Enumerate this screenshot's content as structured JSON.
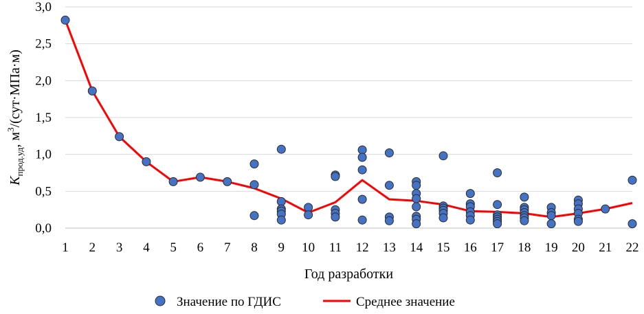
{
  "chart_data": {
    "type": "scatter",
    "xlabel": "Год разработки",
    "ylabel": {
      "symbol": "K",
      "subscript": "прод.уд",
      "unit_prefix": ", м",
      "unit_sup": "3",
      "unit_suffix": "/(сут·МПа·м)"
    },
    "xlim": [
      1,
      22
    ],
    "ylim": [
      0,
      3.0
    ],
    "x_ticks": [
      "1",
      "2",
      "3",
      "4",
      "5",
      "6",
      "7",
      "8",
      "9",
      "10",
      "11",
      "12",
      "13",
      "14",
      "15",
      "16",
      "17",
      "18",
      "19",
      "20",
      "21",
      "22"
    ],
    "y_ticks": [
      "0,0",
      "0,5",
      "1,0",
      "1,5",
      "2,0",
      "2,5",
      "3,0"
    ],
    "grid": "horizontal",
    "legend_position": "bottom",
    "series": [
      {
        "name": "Значение по ГДИС",
        "kind": "scatter",
        "color": "#4472C4",
        "points": [
          [
            1,
            2.82
          ],
          [
            2,
            1.86
          ],
          [
            3,
            1.24
          ],
          [
            4,
            0.9
          ],
          [
            5,
            0.63
          ],
          [
            6,
            0.69
          ],
          [
            7,
            0.63
          ],
          [
            8,
            0.87
          ],
          [
            8,
            0.59
          ],
          [
            8,
            0.17
          ],
          [
            9,
            1.07
          ],
          [
            9,
            0.36
          ],
          [
            9,
            0.26
          ],
          [
            9,
            0.23
          ],
          [
            9,
            0.19
          ],
          [
            9,
            0.11
          ],
          [
            10,
            0.28
          ],
          [
            10,
            0.18
          ],
          [
            11,
            0.72
          ],
          [
            11,
            0.7
          ],
          [
            11,
            0.25
          ],
          [
            11,
            0.2
          ],
          [
            11,
            0.15
          ],
          [
            12,
            1.06
          ],
          [
            12,
            0.96
          ],
          [
            12,
            0.79
          ],
          [
            12,
            0.39
          ],
          [
            12,
            0.11
          ],
          [
            13,
            1.02
          ],
          [
            13,
            0.58
          ],
          [
            13,
            0.15
          ],
          [
            13,
            0.1
          ],
          [
            14,
            0.63
          ],
          [
            14,
            0.58
          ],
          [
            14,
            0.47
          ],
          [
            14,
            0.4
          ],
          [
            14,
            0.29
          ],
          [
            14,
            0.16
          ],
          [
            14,
            0.12
          ],
          [
            14,
            0.06
          ],
          [
            15,
            0.98
          ],
          [
            15,
            0.3
          ],
          [
            15,
            0.27
          ],
          [
            15,
            0.24
          ],
          [
            15,
            0.2
          ],
          [
            15,
            0.14
          ],
          [
            16,
            0.47
          ],
          [
            16,
            0.33
          ],
          [
            16,
            0.29
          ],
          [
            16,
            0.22
          ],
          [
            16,
            0.17
          ],
          [
            16,
            0.11
          ],
          [
            17,
            0.75
          ],
          [
            17,
            0.32
          ],
          [
            17,
            0.18
          ],
          [
            17,
            0.15
          ],
          [
            17,
            0.12
          ],
          [
            17,
            0.09
          ],
          [
            17,
            0.06
          ],
          [
            18,
            0.42
          ],
          [
            18,
            0.28
          ],
          [
            18,
            0.25
          ],
          [
            18,
            0.21
          ],
          [
            18,
            0.17
          ],
          [
            18,
            0.14
          ],
          [
            18,
            0.1
          ],
          [
            19,
            0.28
          ],
          [
            19,
            0.21
          ],
          [
            19,
            0.17
          ],
          [
            19,
            0.06
          ],
          [
            20,
            0.38
          ],
          [
            20,
            0.33
          ],
          [
            20,
            0.26
          ],
          [
            20,
            0.2
          ],
          [
            20,
            0.12
          ],
          [
            20,
            0.09
          ],
          [
            21,
            0.26
          ],
          [
            22,
            0.65
          ],
          [
            22,
            0.06
          ]
        ]
      },
      {
        "name": "Среднее значение",
        "kind": "line",
        "color": "#FF0000",
        "points": [
          [
            1,
            2.82
          ],
          [
            2,
            1.86
          ],
          [
            3,
            1.24
          ],
          [
            4,
            0.9
          ],
          [
            5,
            0.63
          ],
          [
            6,
            0.69
          ],
          [
            7,
            0.63
          ],
          [
            8,
            0.54
          ],
          [
            9,
            0.4
          ],
          [
            10,
            0.21
          ],
          [
            11,
            0.35
          ],
          [
            12,
            0.65
          ],
          [
            13,
            0.39
          ],
          [
            14,
            0.37
          ],
          [
            15,
            0.32
          ],
          [
            16,
            0.23
          ],
          [
            17,
            0.22
          ],
          [
            18,
            0.2
          ],
          [
            19,
            0.15
          ],
          [
            20,
            0.2
          ],
          [
            21,
            0.26
          ],
          [
            22,
            0.34
          ]
        ]
      }
    ]
  }
}
